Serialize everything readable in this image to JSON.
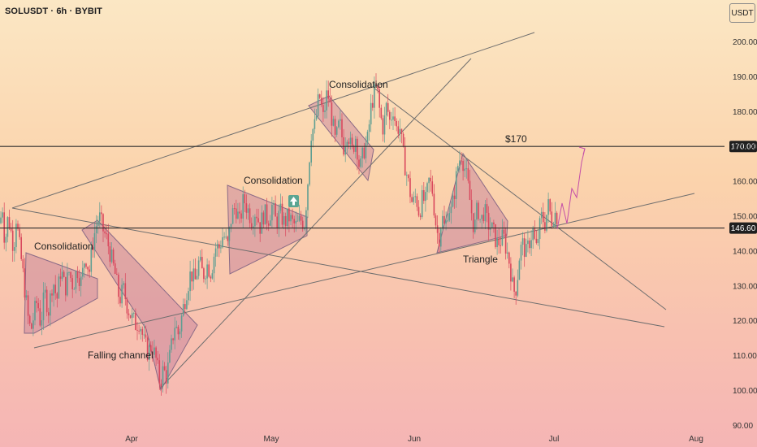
{
  "header": {
    "symbol": "SOLUSDT · 6h · BYBIT",
    "currency": "USDT"
  },
  "colors": {
    "candle_up": "#5e9e92",
    "candle_down": "#d9485d",
    "pattern_fill": "#c07a9a",
    "line": "#6e6e6e",
    "price_line": "#2c2c2c",
    "projection": "#c44fa8",
    "arrow_badge": "#5aa592"
  },
  "chart_data": {
    "type": "candlestick",
    "x_axis": {
      "labels": [
        "Apr",
        "May",
        "Jun",
        "Jul",
        "Aug"
      ]
    },
    "y_axis": {
      "labels": [
        "200.00",
        "190.00",
        "180.00",
        "170.00",
        "160.00",
        "150.00",
        "140.00",
        "130.00",
        "120.00",
        "110.00",
        "100.00",
        "90.00"
      ],
      "ylim": [
        90,
        204
      ]
    },
    "price_levels": [
      {
        "value": 170.0,
        "label": "170.00"
      },
      {
        "value": 146.6,
        "label": "146.60"
      }
    ],
    "price_annotation": "$170",
    "annotations": [
      "Consolidation",
      "Falling channel",
      "Consolidation",
      "Consolidation",
      "Triangle"
    ],
    "path": [
      [
        0,
        148
      ],
      [
        3,
        153
      ],
      [
        6,
        142
      ],
      [
        10,
        150
      ],
      [
        14,
        145
      ],
      [
        17,
        141
      ],
      [
        20,
        150
      ],
      [
        23,
        143
      ],
      [
        27,
        136
      ],
      [
        31,
        128
      ],
      [
        35,
        120
      ],
      [
        38,
        117
      ],
      [
        42,
        122
      ],
      [
        46,
        126
      ],
      [
        50,
        119
      ],
      [
        55,
        128
      ],
      [
        60,
        123
      ],
      [
        65,
        132
      ],
      [
        70,
        126
      ],
      [
        75,
        135
      ],
      [
        80,
        129
      ],
      [
        85,
        134
      ],
      [
        90,
        130
      ],
      [
        95,
        135
      ],
      [
        100,
        131
      ],
      [
        105,
        139
      ],
      [
        110,
        134
      ],
      [
        114,
        142
      ],
      [
        118,
        147
      ],
      [
        122,
        150
      ],
      [
        127,
        146
      ],
      [
        132,
        143
      ],
      [
        137,
        138
      ],
      [
        142,
        133
      ],
      [
        147,
        126
      ],
      [
        152,
        129
      ],
      [
        157,
        124
      ],
      [
        162,
        121
      ],
      [
        167,
        119
      ],
      [
        172,
        120
      ],
      [
        177,
        114
      ],
      [
        182,
        111
      ],
      [
        187,
        113
      ],
      [
        192,
        109
      ],
      [
        197,
        102
      ],
      [
        201,
        106
      ],
      [
        205,
        104
      ],
      [
        210,
        111
      ],
      [
        215,
        119
      ],
      [
        220,
        116
      ],
      [
        225,
        123
      ],
      [
        230,
        129
      ],
      [
        235,
        134
      ],
      [
        240,
        131
      ],
      [
        245,
        137
      ],
      [
        250,
        133
      ],
      [
        255,
        136
      ],
      [
        260,
        134
      ],
      [
        265,
        141
      ],
      [
        270,
        141
      ],
      [
        275,
        145
      ],
      [
        280,
        141
      ],
      [
        285,
        150
      ],
      [
        290,
        153
      ],
      [
        295,
        148
      ],
      [
        300,
        155
      ],
      [
        305,
        152
      ],
      [
        310,
        149
      ],
      [
        315,
        152
      ],
      [
        320,
        147
      ],
      [
        325,
        151
      ],
      [
        330,
        149
      ],
      [
        335,
        153
      ],
      [
        340,
        148
      ],
      [
        345,
        151
      ],
      [
        350,
        148
      ],
      [
        355,
        150
      ],
      [
        360,
        148
      ],
      [
        365,
        147
      ],
      [
        370,
        149
      ],
      [
        375,
        148
      ],
      [
        379,
        160
      ],
      [
        383,
        174
      ],
      [
        388,
        176
      ],
      [
        393,
        185
      ],
      [
        398,
        178
      ],
      [
        403,
        186
      ],
      [
        408,
        179
      ],
      [
        413,
        171
      ],
      [
        418,
        177
      ],
      [
        423,
        170
      ],
      [
        428,
        175
      ],
      [
        433,
        168
      ],
      [
        438,
        173
      ],
      [
        443,
        163
      ],
      [
        448,
        169
      ],
      [
        453,
        172
      ],
      [
        456,
        180
      ],
      [
        460,
        185
      ],
      [
        464,
        187
      ],
      [
        468,
        179
      ],
      [
        472,
        175
      ],
      [
        476,
        182
      ],
      [
        480,
        177
      ],
      [
        484,
        181
      ],
      [
        488,
        175
      ],
      [
        492,
        176
      ],
      [
        496,
        168
      ],
      [
        500,
        163
      ],
      [
        504,
        158
      ],
      [
        508,
        153
      ],
      [
        512,
        156
      ],
      [
        516,
        151
      ],
      [
        520,
        155
      ],
      [
        524,
        154
      ],
      [
        528,
        160
      ],
      [
        532,
        158
      ],
      [
        536,
        149
      ],
      [
        540,
        143
      ],
      [
        544,
        150
      ],
      [
        548,
        146
      ],
      [
        552,
        153
      ],
      [
        556,
        151
      ],
      [
        560,
        158
      ],
      [
        564,
        165
      ],
      [
        568,
        168
      ],
      [
        572,
        164
      ],
      [
        576,
        159
      ],
      [
        580,
        152
      ],
      [
        584,
        146
      ],
      [
        588,
        153
      ],
      [
        592,
        148
      ],
      [
        596,
        152
      ],
      [
        600,
        148
      ],
      [
        604,
        147
      ],
      [
        608,
        145
      ],
      [
        612,
        142
      ],
      [
        616,
        143
      ],
      [
        620,
        144
      ],
      [
        624,
        140
      ],
      [
        628,
        136
      ],
      [
        632,
        128
      ],
      [
        636,
        130
      ],
      [
        640,
        140
      ],
      [
        644,
        142
      ],
      [
        648,
        139
      ],
      [
        652,
        143
      ],
      [
        656,
        146
      ],
      [
        660,
        140
      ],
      [
        663,
        145
      ],
      [
        667,
        150
      ],
      [
        671,
        148
      ],
      [
        675,
        153
      ],
      [
        679,
        149
      ],
      [
        683,
        151
      ],
      [
        686,
        150
      ]
    ]
  }
}
